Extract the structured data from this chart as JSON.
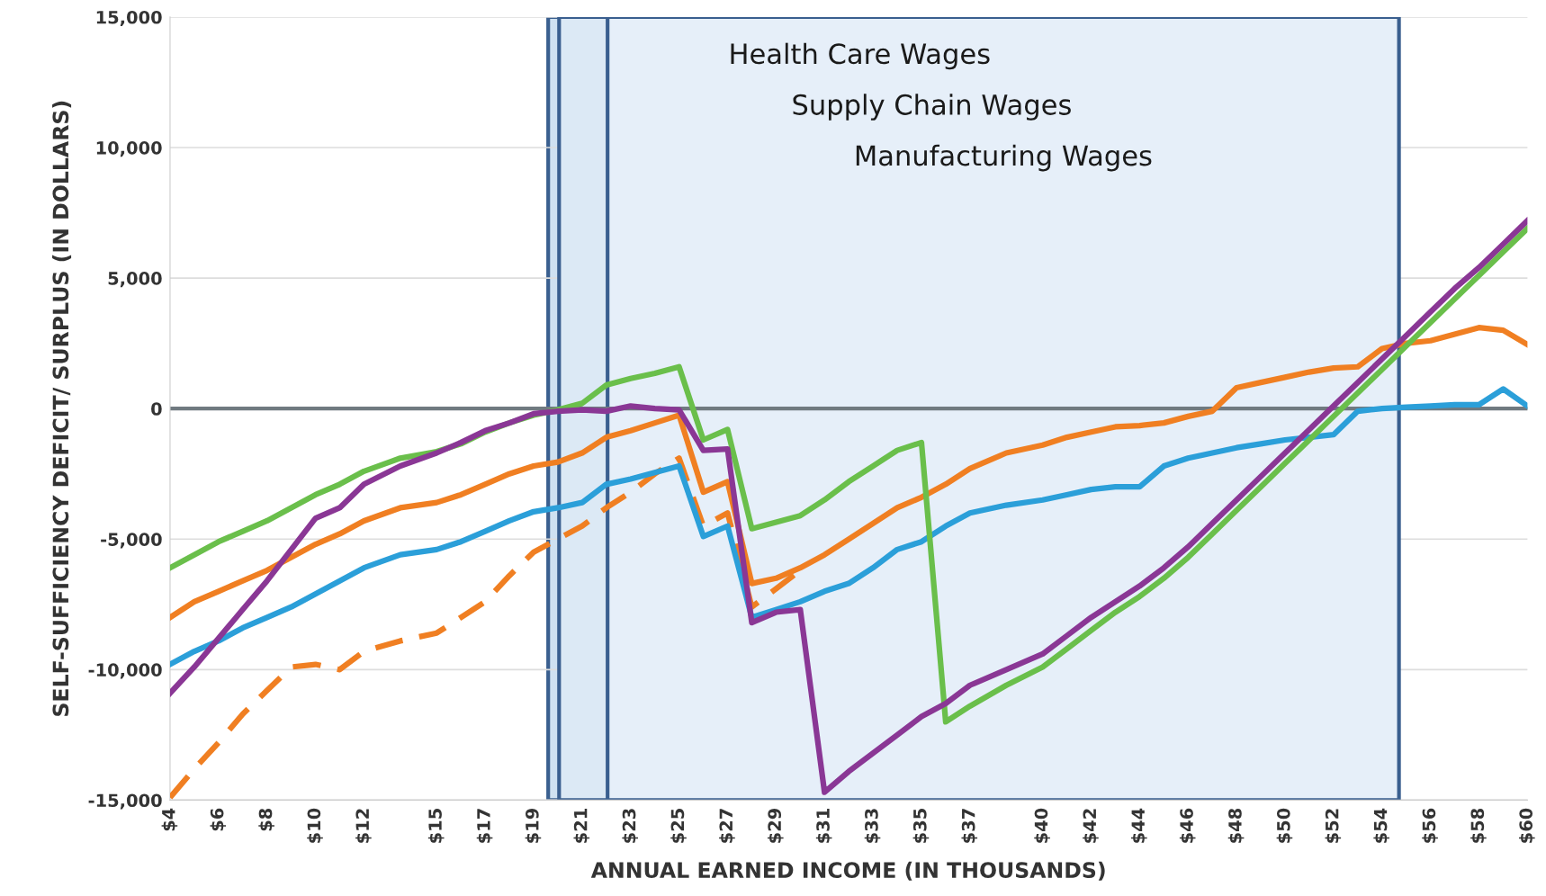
{
  "chart_data": {
    "type": "line",
    "xlabel": "ANNUAL EARNED INCOME (IN THOUSANDS)",
    "ylabel": "SELF-SUFFICIENCY DEFICIT/ SURPLUS (IN DOLLARS)",
    "x": [
      4,
      5,
      6,
      7,
      8,
      9,
      10,
      11,
      12,
      13.5,
      15,
      16,
      17,
      18,
      19,
      20,
      21,
      22,
      23,
      24,
      25,
      26,
      27,
      28,
      29,
      30,
      31,
      32,
      33,
      34,
      35,
      36,
      37,
      38.5,
      40,
      41,
      42,
      43,
      44,
      45,
      46,
      47,
      48,
      49,
      50,
      51,
      52,
      53,
      54,
      55,
      56,
      57,
      58,
      59,
      60
    ],
    "xlim": [
      4,
      60
    ],
    "xticks": [
      {
        "value": 4,
        "label": "$4"
      },
      {
        "value": 6,
        "label": "$6"
      },
      {
        "value": 8,
        "label": "$8"
      },
      {
        "value": 10,
        "label": "$10"
      },
      {
        "value": 12,
        "label": "$12"
      },
      {
        "value": 15,
        "label": "$15"
      },
      {
        "value": 17,
        "label": "$17"
      },
      {
        "value": 19,
        "label": "$19"
      },
      {
        "value": 21,
        "label": "$21"
      },
      {
        "value": 23,
        "label": "$23"
      },
      {
        "value": 25,
        "label": "$25"
      },
      {
        "value": 27,
        "label": "$27"
      },
      {
        "value": 29,
        "label": "$29"
      },
      {
        "value": 31,
        "label": "$31"
      },
      {
        "value": 33,
        "label": "$33"
      },
      {
        "value": 35,
        "label": "$35"
      },
      {
        "value": 37,
        "label": "$37"
      },
      {
        "value": 40,
        "label": "$40"
      },
      {
        "value": 42,
        "label": "$42"
      },
      {
        "value": 44,
        "label": "$44"
      },
      {
        "value": 46,
        "label": "$46"
      },
      {
        "value": 48,
        "label": "$48"
      },
      {
        "value": 50,
        "label": "$50"
      },
      {
        "value": 52,
        "label": "$52"
      },
      {
        "value": 54,
        "label": "$54"
      },
      {
        "value": 56,
        "label": "$56"
      },
      {
        "value": 58,
        "label": "$58"
      },
      {
        "value": 60,
        "label": "$60"
      }
    ],
    "ylim": [
      -15000,
      15000
    ],
    "yticks": [
      {
        "value": -15000,
        "label": "-15,000"
      },
      {
        "value": -10000,
        "label": "-10,000"
      },
      {
        "value": -5000,
        "label": "-5,000"
      },
      0,
      {
        "value": 5000,
        "label": "5,000"
      },
      {
        "value": 10000,
        "label": "10,000"
      },
      {
        "value": 15000,
        "label": "15,000"
      }
    ],
    "grid": "y",
    "legend": false,
    "ref_lines": [
      {
        "axis": "y",
        "value": 0,
        "color": "#707a80"
      }
    ],
    "bands": [
      {
        "axis": "x",
        "from": 19.6,
        "to": 45.3,
        "label": "Health Care Wages",
        "color": "#cfe1f1"
      },
      {
        "axis": "x",
        "from": 20.05,
        "to": 50.8,
        "label": "Supply Chain Wages",
        "color": "#dce9f5"
      },
      {
        "axis": "x",
        "from": 22.05,
        "to": 54.7,
        "label": "Manufacturing Wages",
        "color": "#e6eff9"
      }
    ],
    "series": [
      {
        "color": "#f07f22",
        "line_style": "dashed",
        "values": [
          -14900,
          -13800,
          -12800,
          -11700,
          -10800,
          -9900,
          -9800,
          -10000,
          -9300,
          -8900,
          -8600,
          -8000,
          -7400,
          -6400,
          -5500,
          -5000,
          -4500,
          -3800,
          -3200,
          -2500,
          -1900,
          -4500,
          -4000,
          -7600,
          -6900,
          -6200,
          null,
          null,
          null,
          null,
          null,
          null,
          null,
          null,
          null,
          null,
          null,
          null,
          null,
          null,
          null,
          null,
          null,
          null,
          null,
          null,
          null,
          null,
          null,
          null,
          null,
          null,
          null,
          null,
          null
        ]
      },
      {
        "color": "#2b9fd9",
        "values": [
          -9800,
          -9300,
          -8900,
          -8400,
          -8000,
          -7600,
          -7100,
          -6600,
          -6100,
          -5600,
          -5400,
          -5100,
          -4700,
          -4300,
          -3950,
          -3800,
          -3600,
          -2900,
          -2700,
          -2450,
          -2200,
          -4900,
          -4500,
          -8000,
          -7700,
          -7400,
          -7000,
          -6700,
          -6100,
          -5400,
          -5100,
          -4500,
          -4000,
          -3700,
          -3500,
          -3300,
          -3100,
          -3000,
          -3000,
          -2200,
          -1900,
          -1700,
          -1500,
          -1350,
          -1200,
          -1100,
          -1000,
          -100,
          0,
          50,
          100,
          150,
          150,
          750,
          100
        ]
      },
      {
        "color": "#f07f22",
        "values": [
          -8000,
          -7400,
          -7000,
          -6600,
          -6200,
          -5700,
          -5200,
          -4800,
          -4300,
          -3800,
          -3600,
          -3300,
          -2900,
          -2500,
          -2200,
          -2050,
          -1700,
          -1100,
          -850,
          -550,
          -250,
          -3200,
          -2800,
          -6700,
          -6500,
          -6100,
          -5600,
          -5000,
          -4400,
          -3800,
          -3400,
          -2900,
          -2300,
          -1700,
          -1400,
          -1100,
          -900,
          -700,
          -650,
          -550,
          -300,
          -100,
          800,
          1000,
          1200,
          1400,
          1550,
          1600,
          2300,
          2500,
          2600,
          2850,
          3100,
          3000,
          2450
        ]
      },
      {
        "color": "#6abf4b",
        "values": [
          -6100,
          -5600,
          -5100,
          -4700,
          -4300,
          -3800,
          -3300,
          -2900,
          -2400,
          -1900,
          -1650,
          -1350,
          -900,
          -550,
          -250,
          -50,
          200,
          900,
          1150,
          1350,
          1600,
          -1200,
          -800,
          -4600,
          -4350,
          -4100,
          -3500,
          -2800,
          -2200,
          -1600,
          -1300,
          -12000,
          -11400,
          -10600,
          -9900,
          -9200,
          -8500,
          -7800,
          -7200,
          -6500,
          -5700,
          -4800,
          -3900,
          -3000,
          -2100,
          -1200,
          -300,
          600,
          1500,
          2400,
          3300,
          4200,
          5100,
          6000,
          6900
        ]
      },
      {
        "color": "#8a3795",
        "values": [
          -10900,
          -9900,
          -8800,
          -7700,
          -6600,
          -5400,
          -4200,
          -3800,
          -2900,
          -2200,
          -1700,
          -1300,
          -850,
          -550,
          -200,
          -100,
          -50,
          -100,
          100,
          0,
          -50,
          -1600,
          -1550,
          -8200,
          -7800,
          -7700,
          -14700,
          -13900,
          -13200,
          -12500,
          -11800,
          -11300,
          -10600,
          -10000,
          -9400,
          -8700,
          -8000,
          -7400,
          -6800,
          -6100,
          -5300,
          -4400,
          -3500,
          -2600,
          -1700,
          -800,
          100,
          1000,
          1900,
          2800,
          3700,
          4600,
          5400,
          6300,
          7200
        ]
      }
    ]
  }
}
